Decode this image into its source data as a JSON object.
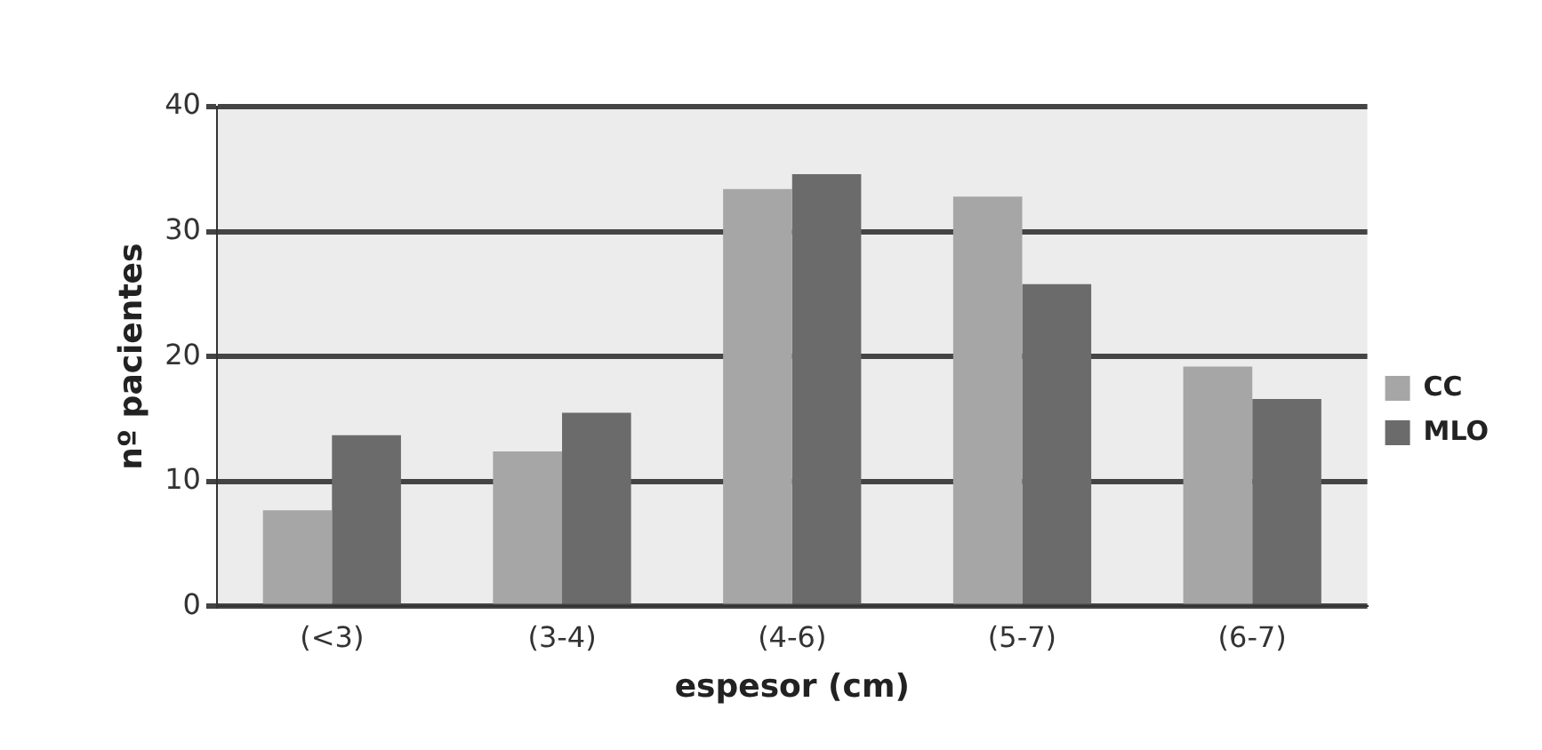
{
  "chart_data": {
    "type": "bar",
    "xlabel": "espesor (cm)",
    "ylabel": "nº pacientes",
    "categories": [
      "(<3)",
      "(3-4)",
      "(4-6)",
      "(5-7)",
      "(6-7)"
    ],
    "series": [
      {
        "name": "CC",
        "color": "#a6a6a6",
        "values": [
          7.7,
          12.4,
          33.4,
          32.8,
          19.2
        ]
      },
      {
        "name": "MLO",
        "color": "#6b6b6b",
        "values": [
          13.7,
          15.5,
          34.6,
          25.8,
          16.6
        ]
      }
    ],
    "ylim": [
      0,
      40
    ],
    "yticks": [
      0,
      10,
      20,
      30,
      40
    ],
    "grid": "y",
    "legend": "right"
  }
}
